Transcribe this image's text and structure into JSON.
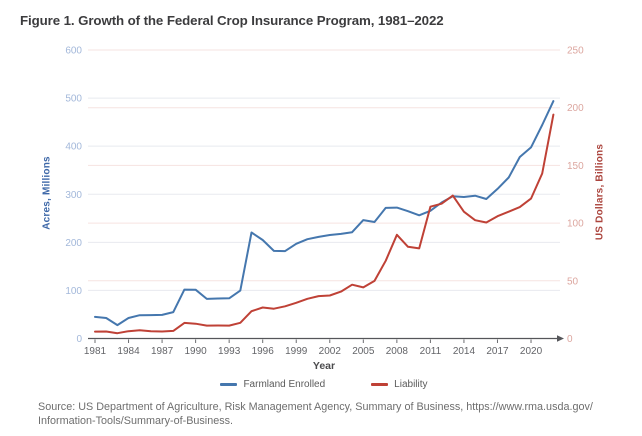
{
  "title": "Figure 1. Growth of the Federal Crop Insurance Program, 1981–2022",
  "source": {
    "line1": "Source: US Department of Agriculture, Risk Management Agency, Summary of Business, https://www.rma.usda.gov/",
    "line2": "Information-Tools/Summary-of-Business."
  },
  "chart_data": {
    "type": "line",
    "xlabel": "Year",
    "x": [
      1981,
      1982,
      1983,
      1984,
      1985,
      1986,
      1987,
      1988,
      1989,
      1990,
      1991,
      1992,
      1993,
      1994,
      1995,
      1996,
      1997,
      1998,
      1999,
      2000,
      2001,
      2002,
      2003,
      2004,
      2005,
      2006,
      2007,
      2008,
      2009,
      2010,
      2011,
      2012,
      2013,
      2014,
      2015,
      2016,
      2017,
      2018,
      2019,
      2020,
      2021,
      2022
    ],
    "x_ticks": [
      1981,
      1984,
      1987,
      1990,
      1993,
      1996,
      1999,
      2002,
      2005,
      2008,
      2011,
      2014,
      2017,
      2020
    ],
    "left_axis": {
      "label": "Acres, Millions",
      "min": 0,
      "max": 600,
      "ticks": [
        0,
        100,
        200,
        300,
        400,
        500,
        600
      ],
      "tick_color": "#a3b8da",
      "title_color": "#3e68a8",
      "grid_color": "#e8eaef"
    },
    "right_axis": {
      "label": "US Dollars, Billions",
      "min": 0,
      "max": 250,
      "ticks": [
        0,
        50,
        100,
        150,
        200,
        250
      ],
      "tick_color": "#dca69f",
      "title_color": "#ab443d",
      "grid_color": "#f6e3e1"
    },
    "legend_position": "bottom",
    "grid": true,
    "series": [
      {
        "name": "Farmland Enrolled",
        "axis": "left",
        "color": "#4577ae",
        "values": [
          45.0,
          42.7,
          27.9,
          42.7,
          48.5,
          48.7,
          49.1,
          55.0,
          101.6,
          101.4,
          82.4,
          83.1,
          83.7,
          99.6,
          220.5,
          204.9,
          182.2,
          181.7,
          196.9,
          206.5,
          211.3,
          215.2,
          217.6,
          221.1,
          246.2,
          242.2,
          271.6,
          272.3,
          264.8,
          256.2,
          265.5,
          282.9,
          295.8,
          294.2,
          297.0,
          290.1,
          311.2,
          334.8,
          377.4,
          397.4,
          444.1,
          493.8
        ]
      },
      {
        "name": "Liability",
        "axis": "right",
        "color": "#bf4136",
        "values": [
          6.0,
          6.1,
          4.6,
          6.3,
          7.2,
          6.2,
          6.1,
          6.6,
          13.5,
          12.8,
          11.2,
          11.3,
          11.2,
          13.6,
          23.7,
          26.9,
          25.8,
          27.9,
          30.9,
          34.4,
          36.7,
          37.3,
          40.6,
          46.6,
          44.3,
          49.9,
          67.3,
          89.9,
          79.5,
          78.1,
          114.2,
          116.8,
          123.8,
          109.9,
          102.5,
          100.5,
          106.0,
          109.9,
          113.9,
          121.2,
          143.0,
          194.0
        ]
      }
    ]
  }
}
